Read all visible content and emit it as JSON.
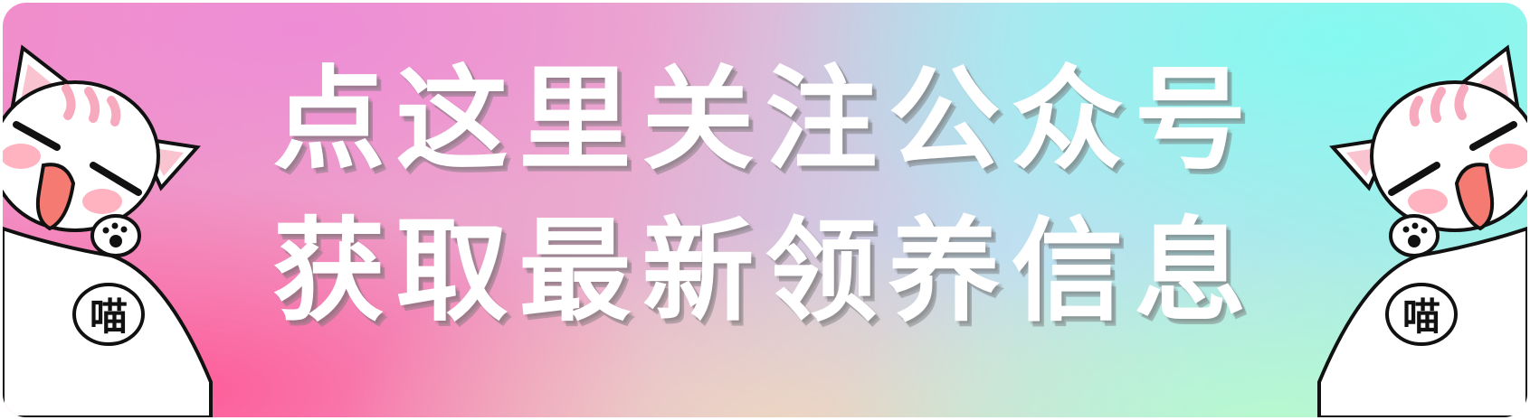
{
  "banner": {
    "line1": "点这里关注公众号",
    "line2": "获取最新领养信息"
  },
  "cats": {
    "left": {
      "bubble_text": "喵"
    },
    "right": {
      "bubble_text": "喵"
    }
  },
  "colors": {
    "text": "#ffffff",
    "pink": "#ff5a96",
    "mint": "#82faf0"
  }
}
